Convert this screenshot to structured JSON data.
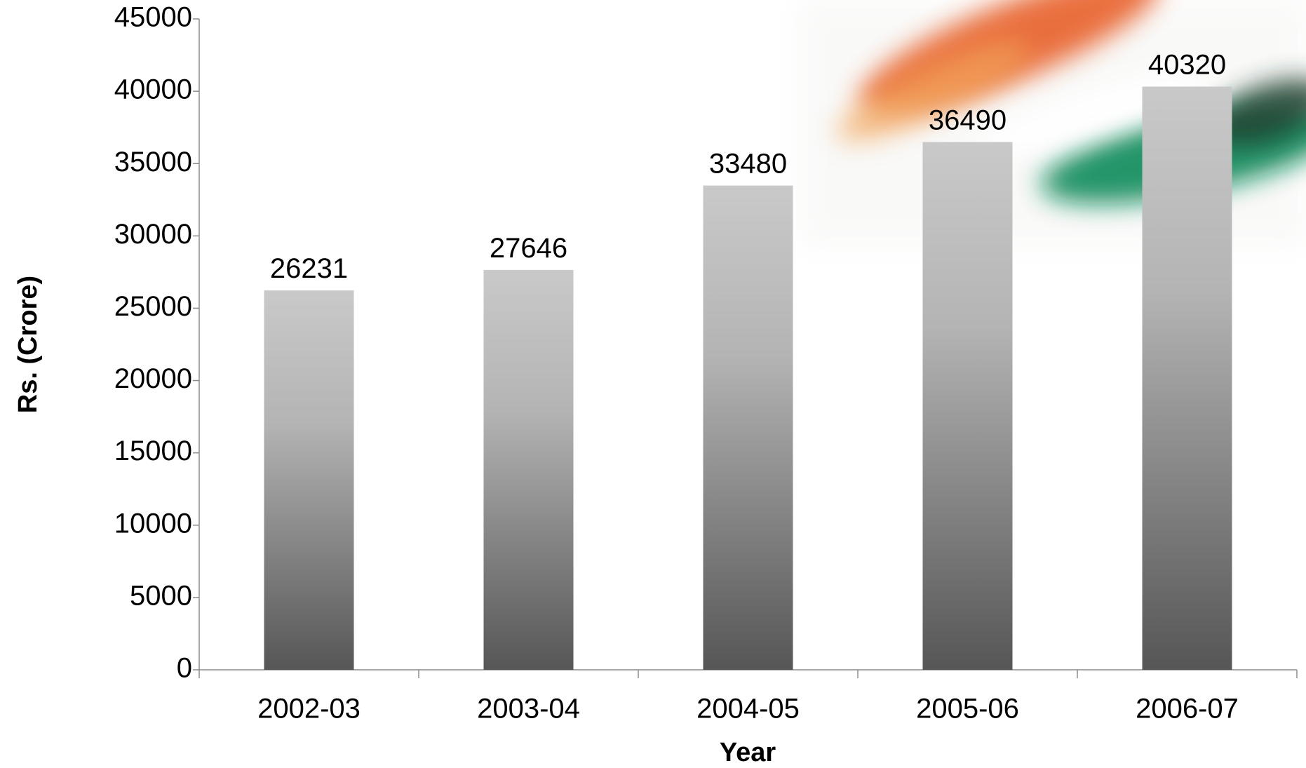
{
  "chart_data": {
    "type": "bar",
    "x_label": "Year",
    "y_label": "Rs. (Crore)",
    "categories": [
      "2002-03",
      "2003-04",
      "2004-05",
      "2005-06",
      "2006-07"
    ],
    "values": [
      26231,
      27646,
      33480,
      36490,
      40320
    ],
    "ylim": [
      0,
      45000
    ],
    "yticks": [
      0,
      5000,
      10000,
      15000,
      20000,
      25000,
      30000,
      35000,
      40000,
      45000
    ],
    "grid": false
  }
}
